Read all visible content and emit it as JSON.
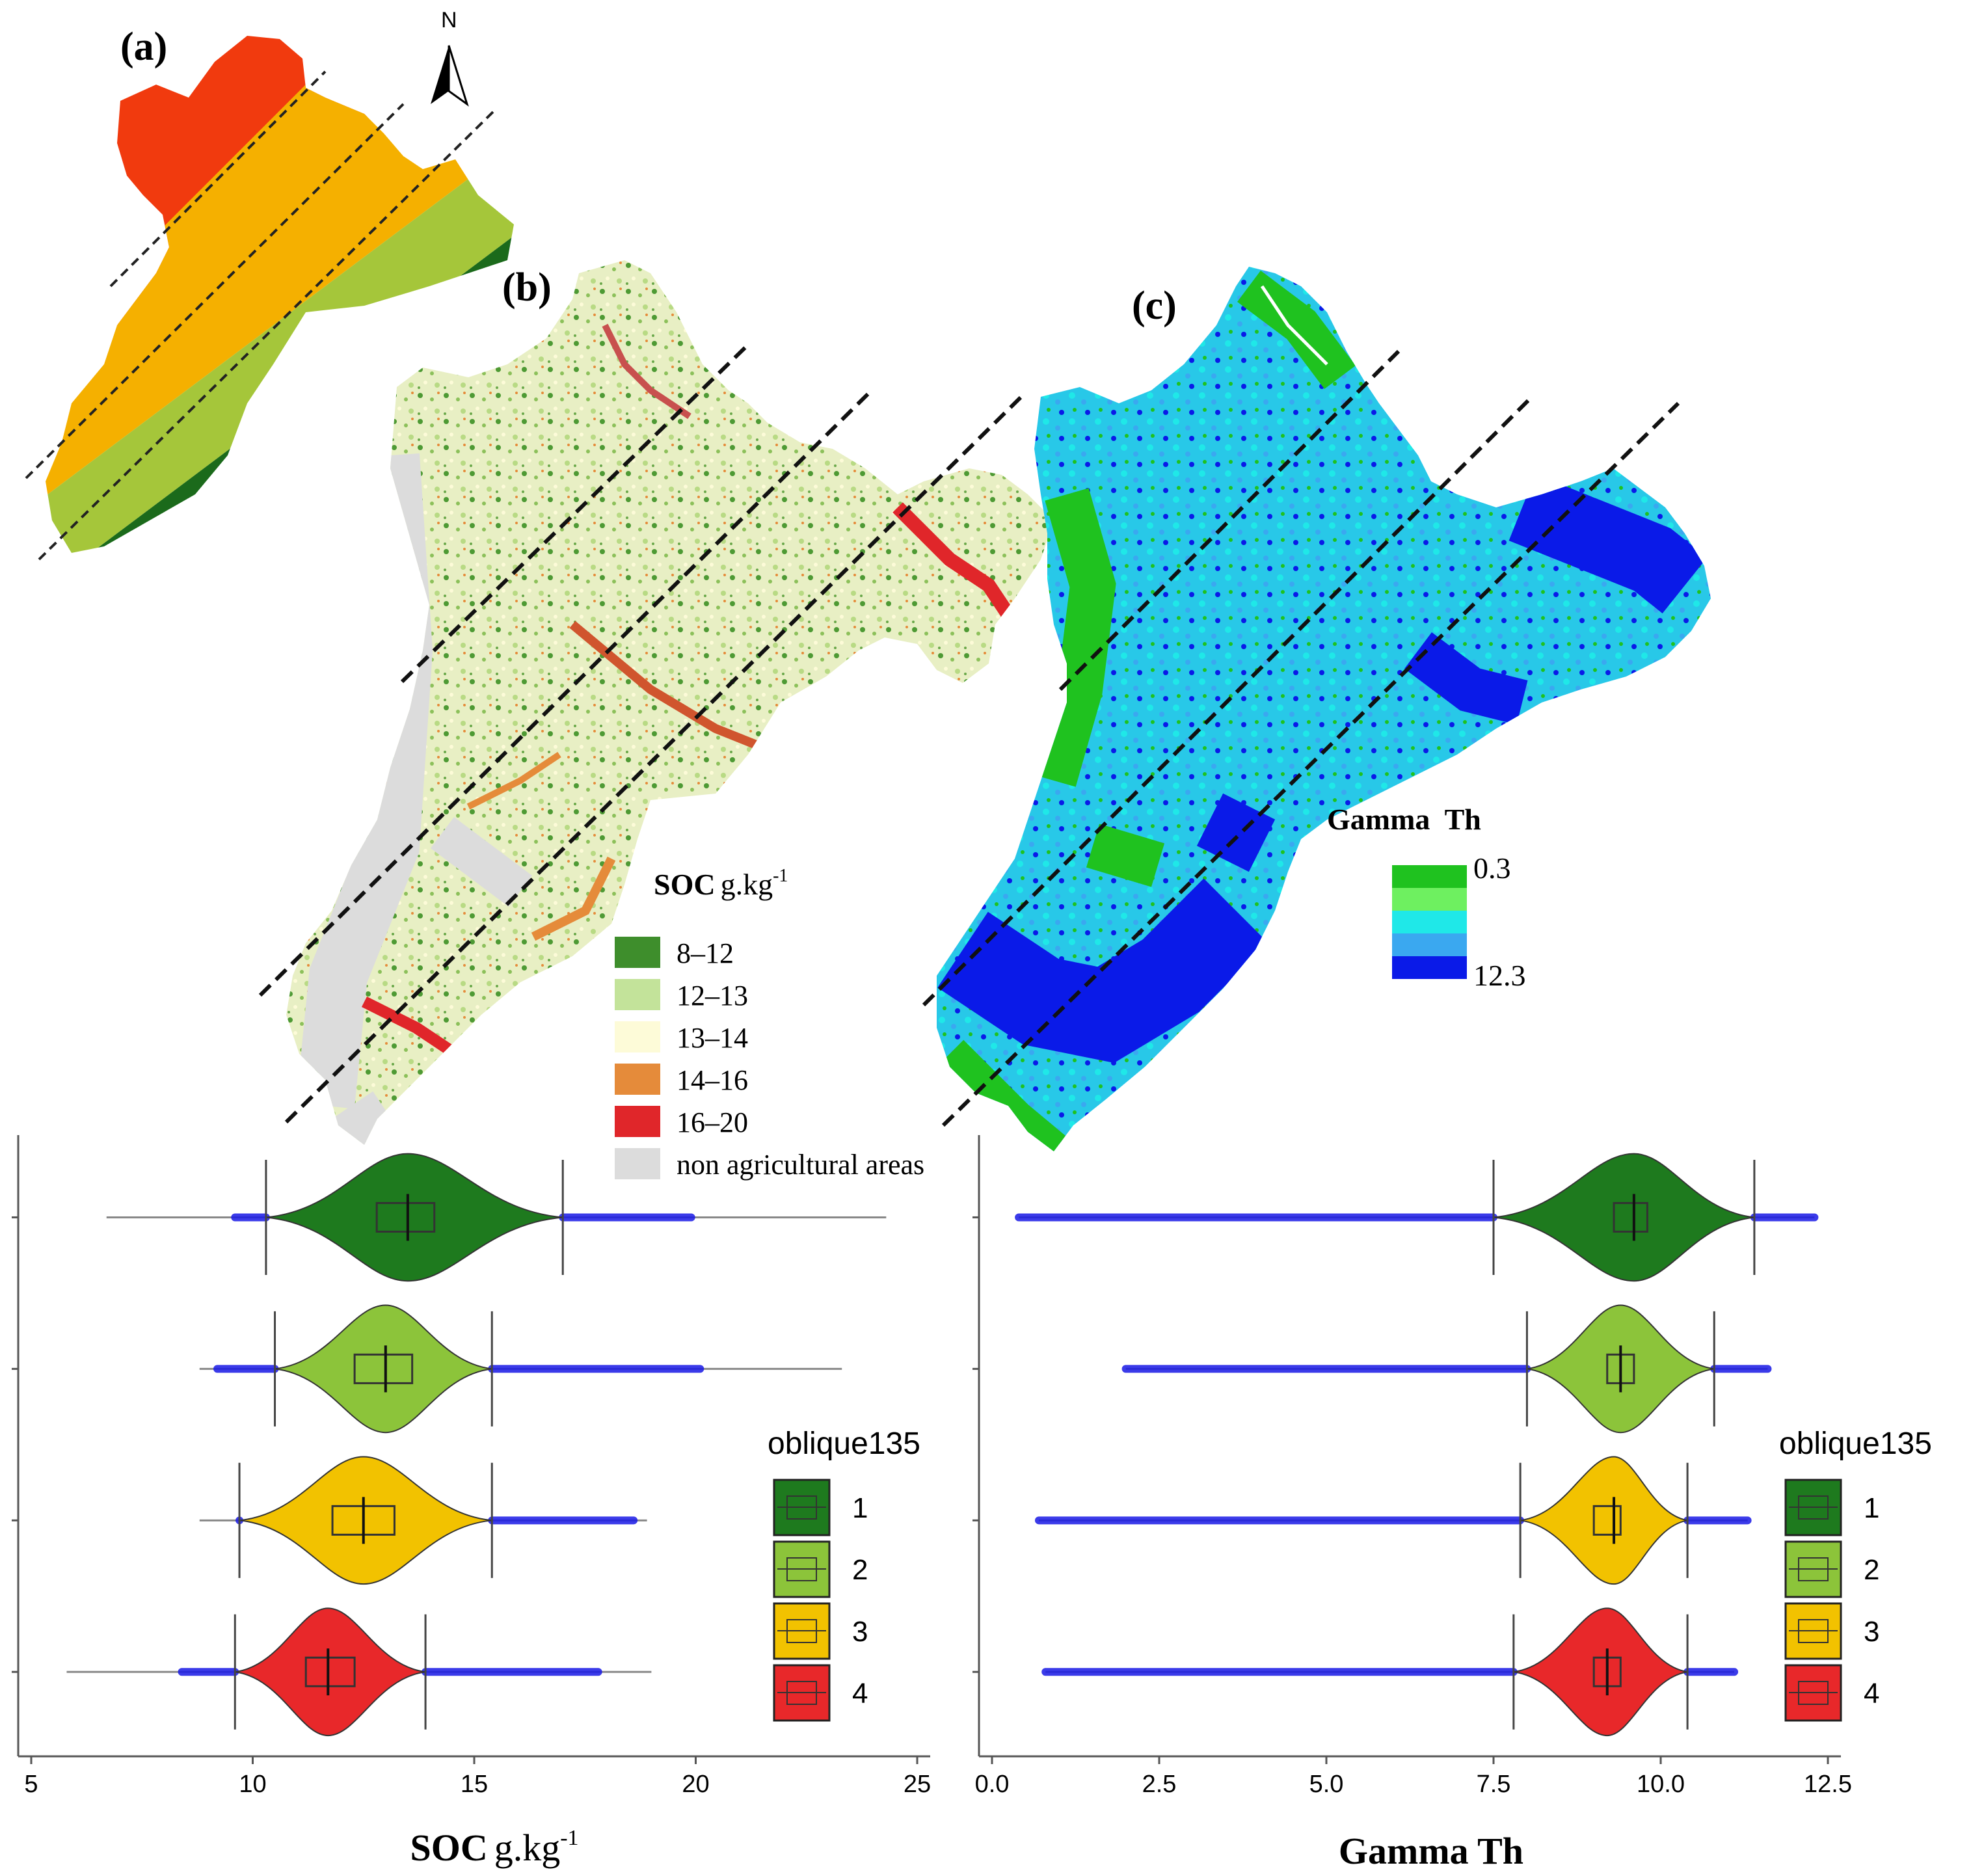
{
  "panels": {
    "a": {
      "label": "(a)",
      "north": "N"
    },
    "b": {
      "label": "(b)"
    },
    "c": {
      "label": "(c)"
    }
  },
  "soc_legend": {
    "title_bold": "SOC",
    "title_unit": "g.kg",
    "title_sup": "-1",
    "items": [
      {
        "label": "8–12",
        "color": "#3e8e2c"
      },
      {
        "label": "12–13",
        "color": "#c3e39a"
      },
      {
        "label": "13–14",
        "color": "#fdfbd8"
      },
      {
        "label": "14–16",
        "color": "#e58b3a"
      },
      {
        "label": "16–20",
        "color": "#e0262a"
      },
      {
        "label": "non agricultural  areas",
        "color": "#dcdcdc"
      }
    ]
  },
  "gamma_legend": {
    "title": "Gamma  Th",
    "min_label": "0.3",
    "max_label": "12.3",
    "colors": [
      "#1fc21f",
      "#6ef060",
      "#1fe8e8",
      "#3aa8f0",
      "#0a1ae8"
    ]
  },
  "zone_colors": [
    "#1e7a1e",
    "#8cc43a",
    "#f2c200",
    "#e8282a"
  ],
  "a_zone_colors": [
    "#f13a0e",
    "#f5b000",
    "#a5c63a",
    "#1b6a1b"
  ],
  "outlier_color": "#1a1ae6",
  "chart_data": [
    {
      "type": "violin",
      "xlabel_bold": "SOC",
      "xlabel_unit": "g.kg",
      "xlabel_sup": "-1",
      "xlim": [
        5,
        25
      ],
      "xticks": [
        "5",
        "10",
        "15",
        "20",
        "25"
      ],
      "legend_title": "oblique135",
      "legend_items": [
        "1",
        "2",
        "3",
        "4"
      ],
      "series": [
        {
          "name": "1",
          "min": 6.7,
          "whisker_low": 10.3,
          "q1": 12.8,
          "median": 13.5,
          "q3": 14.1,
          "whisker_high": 17.0,
          "max": 24.3,
          "outliers_low": [
            9.6,
            10.3
          ],
          "outliers_high": [
            17.0,
            19.9
          ]
        },
        {
          "name": "2",
          "min": 8.8,
          "whisker_low": 10.5,
          "q1": 12.3,
          "median": 13.0,
          "q3": 13.6,
          "whisker_high": 15.4,
          "max": 23.3,
          "outliers_low": [
            9.2,
            10.5
          ],
          "outliers_high": [
            15.4,
            20.1
          ]
        },
        {
          "name": "3",
          "min": 8.8,
          "whisker_low": 9.7,
          "q1": 11.8,
          "median": 12.5,
          "q3": 13.2,
          "whisker_high": 15.4,
          "max": 18.9,
          "outliers_low": [
            9.7,
            9.7
          ],
          "outliers_high": [
            15.4,
            18.6
          ]
        },
        {
          "name": "4",
          "min": 5.8,
          "whisker_low": 9.6,
          "q1": 11.2,
          "median": 11.7,
          "q3": 12.3,
          "whisker_high": 13.9,
          "max": 19.0,
          "outliers_low": [
            8.4,
            9.6
          ],
          "outliers_high": [
            13.9,
            17.8
          ]
        }
      ]
    },
    {
      "type": "violin",
      "xlabel": "Gamma  Th",
      "xlim": [
        0,
        12.5
      ],
      "xticks": [
        "0.0",
        "2.5",
        "5.0",
        "7.5",
        "10.0",
        "12.5"
      ],
      "legend_title": "oblique135",
      "legend_items": [
        "1",
        "2",
        "3",
        "4"
      ],
      "series": [
        {
          "name": "1",
          "min": 0.4,
          "whisker_low": 7.5,
          "q1": 9.3,
          "median": 9.6,
          "q3": 9.8,
          "whisker_high": 11.4,
          "max": 12.3,
          "outliers_low": [
            0.4,
            7.5
          ],
          "outliers_high": [
            11.4,
            12.3
          ]
        },
        {
          "name": "2",
          "min": 2.0,
          "whisker_low": 8.0,
          "q1": 9.2,
          "median": 9.4,
          "q3": 9.6,
          "whisker_high": 10.8,
          "max": 11.6,
          "outliers_low": [
            2.0,
            8.0
          ],
          "outliers_high": [
            10.8,
            11.6
          ]
        },
        {
          "name": "3",
          "min": 0.7,
          "whisker_low": 7.9,
          "q1": 9.0,
          "median": 9.3,
          "q3": 9.4,
          "whisker_high": 10.4,
          "max": 11.3,
          "outliers_low": [
            0.7,
            7.9
          ],
          "outliers_high": [
            10.4,
            11.3
          ]
        },
        {
          "name": "4",
          "min": 0.8,
          "whisker_low": 7.8,
          "q1": 9.0,
          "median": 9.2,
          "q3": 9.4,
          "whisker_high": 10.4,
          "max": 11.1,
          "outliers_low": [
            0.8,
            7.8
          ],
          "outliers_high": [
            10.4,
            11.1
          ]
        }
      ]
    }
  ]
}
